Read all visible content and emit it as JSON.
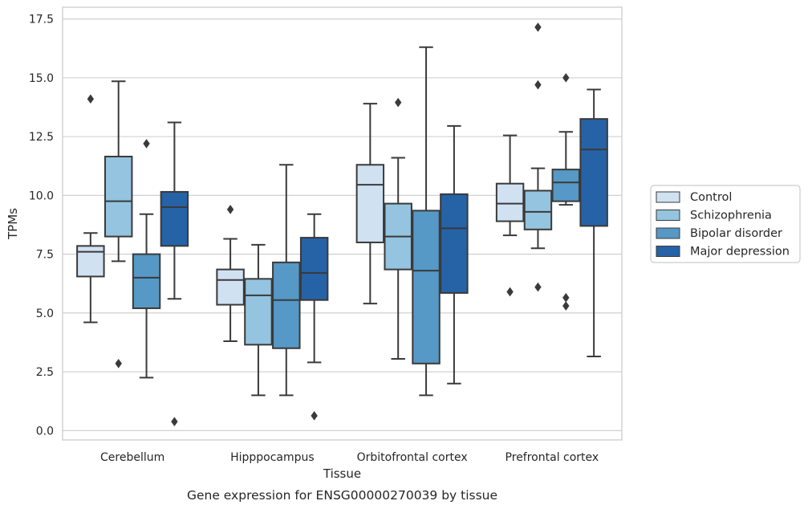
{
  "chart_data": {
    "type": "box",
    "title": "Gene expression for ENSG00000270039 by tissue",
    "xlabel": "Tissue",
    "ylabel": "TPMs",
    "ylim": [
      -0.4,
      18.0
    ],
    "yticks": [
      0.0,
      2.5,
      5.0,
      7.5,
      10.0,
      12.5,
      15.0,
      17.5
    ],
    "ytick_labels": [
      "0.0",
      "2.5",
      "5.0",
      "7.5",
      "10.0",
      "12.5",
      "15.0",
      "17.5"
    ],
    "grid": "horizontal",
    "legend_position": "right",
    "categories": [
      "Cerebellum",
      "Hipppocampus",
      "Orbitofrontal cortex",
      "Prefrontal cortex"
    ],
    "series": [
      {
        "name": "Control",
        "color": "#d0e1f2",
        "boxes": [
          {
            "whisker_low": 4.6,
            "q1": 6.55,
            "median": 7.6,
            "q3": 7.85,
            "whisker_high": 8.4,
            "outliers": [
              14.1
            ]
          },
          {
            "whisker_low": 3.8,
            "q1": 5.35,
            "median": 6.4,
            "q3": 6.85,
            "whisker_high": 8.15,
            "outliers": [
              9.4
            ]
          },
          {
            "whisker_low": 5.4,
            "q1": 8.0,
            "median": 10.45,
            "q3": 11.3,
            "whisker_high": 13.9,
            "outliers": []
          },
          {
            "whisker_low": 8.3,
            "q1": 8.9,
            "median": 9.65,
            "q3": 10.5,
            "whisker_high": 12.55,
            "outliers": [
              5.9
            ]
          }
        ]
      },
      {
        "name": "Schizophrenia",
        "color": "#94c4df",
        "boxes": [
          {
            "whisker_low": 7.2,
            "q1": 8.25,
            "median": 9.75,
            "q3": 11.65,
            "whisker_high": 14.85,
            "outliers": [
              2.85
            ]
          },
          {
            "whisker_low": 1.5,
            "q1": 3.65,
            "median": 5.75,
            "q3": 6.45,
            "whisker_high": 7.9,
            "outliers": []
          },
          {
            "whisker_low": 3.05,
            "q1": 6.85,
            "median": 8.25,
            "q3": 9.65,
            "whisker_high": 11.6,
            "outliers": [
              13.95
            ]
          },
          {
            "whisker_low": 7.75,
            "q1": 8.55,
            "median": 9.3,
            "q3": 10.2,
            "whisker_high": 11.15,
            "outliers": [
              6.1,
              14.7,
              17.15
            ]
          }
        ]
      },
      {
        "name": "Bipolar disorder",
        "color": "#5698c6",
        "boxes": [
          {
            "whisker_low": 2.25,
            "q1": 5.2,
            "median": 6.5,
            "q3": 7.5,
            "whisker_high": 9.2,
            "outliers": [
              12.2
            ]
          },
          {
            "whisker_low": 1.5,
            "q1": 3.5,
            "median": 5.55,
            "q3": 7.15,
            "whisker_high": 11.3,
            "outliers": []
          },
          {
            "whisker_low": 1.5,
            "q1": 2.85,
            "median": 6.8,
            "q3": 9.35,
            "whisker_high": 16.3,
            "outliers": []
          },
          {
            "whisker_low": 9.6,
            "q1": 9.75,
            "median": 10.55,
            "q3": 11.1,
            "whisker_high": 12.7,
            "outliers": [
              5.3,
              5.65,
              15.0
            ]
          }
        ]
      },
      {
        "name": "Major depression",
        "color": "#2662a6",
        "boxes": [
          {
            "whisker_low": 5.6,
            "q1": 7.85,
            "median": 9.5,
            "q3": 10.15,
            "whisker_high": 13.1,
            "outliers": [
              0.38
            ]
          },
          {
            "whisker_low": 2.9,
            "q1": 5.55,
            "median": 6.7,
            "q3": 8.2,
            "whisker_high": 9.2,
            "outliers": [
              0.63
            ]
          },
          {
            "whisker_low": 2.0,
            "q1": 5.85,
            "median": 8.6,
            "q3": 10.05,
            "whisker_high": 12.95,
            "outliers": []
          },
          {
            "whisker_low": 3.15,
            "q1": 8.7,
            "median": 11.95,
            "q3": 13.25,
            "whisker_high": 14.5,
            "outliers": []
          }
        ]
      }
    ]
  }
}
